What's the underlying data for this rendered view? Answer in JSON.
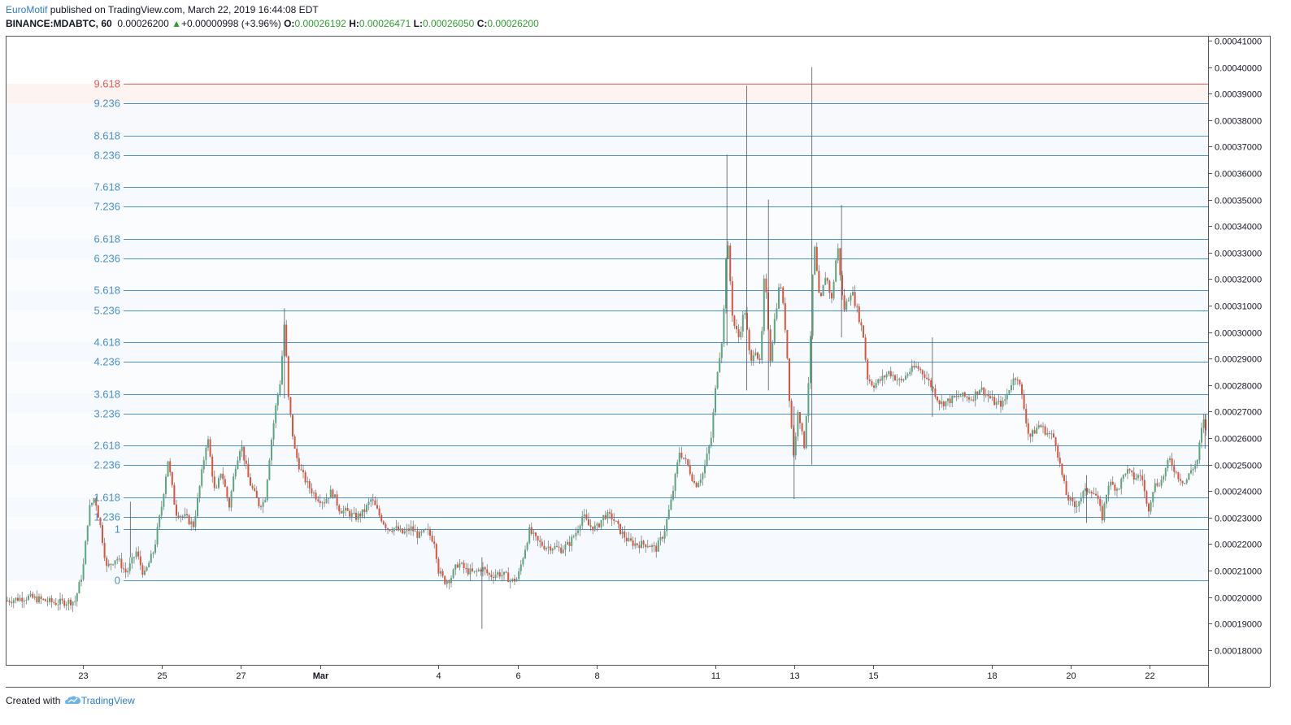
{
  "header": {
    "author": "EuroMotif",
    "published_text": "published on TradingView.com, March 22, 2019 16:44:08 EDT",
    "symbol": "BINANCE:MDABTC, 60",
    "price": "0.00026200",
    "up_arrow": "▲",
    "change": "+0.00000998 (+3.96%)",
    "o_label": "O:",
    "o_value": "0.00026192",
    "h_label": "H:",
    "h_value": "0.00026471",
    "l_label": "L:",
    "l_value": "0.00026050",
    "c_label": "C:",
    "c_value": "0.00026200"
  },
  "footer": {
    "created_with": "Created with",
    "brand": "TradingView",
    "logo_icon": "tradingview-cloud-icon"
  },
  "colors": {
    "up": "#5aa77f",
    "down": "#e0533b",
    "fib_line": "#4a90c9",
    "fib_label": "#4a90c9",
    "fib_top_line": "#e05a57",
    "axis": "#131722"
  },
  "chart_data": {
    "type": "candlestick",
    "ylim": [
      0.000175,
      0.000411
    ],
    "y_ticks": [
      "0.00018000",
      "0.00019000",
      "0.00020000",
      "0.00021000",
      "0.00022000",
      "0.00023000",
      "0.00024000",
      "0.00025000",
      "0.00026000",
      "0.00027000",
      "0.00028000",
      "0.00029000",
      "0.00030000",
      "0.00031000",
      "0.00032000",
      "0.00033000",
      "0.00034000",
      "0.00035000",
      "0.00036000",
      "0.00037000",
      "0.00038000",
      "0.00039000",
      "0.00040000",
      "0.00041000"
    ],
    "x_ticks": [
      {
        "label": "23",
        "day": 23
      },
      {
        "label": "25",
        "day": 25
      },
      {
        "label": "27",
        "day": 27
      },
      {
        "label": "Mar",
        "day": 29
      },
      {
        "label": "4",
        "day": 32
      },
      {
        "label": "6",
        "day": 34
      },
      {
        "label": "8",
        "day": 36
      },
      {
        "label": "11",
        "day": 39
      },
      {
        "label": "13",
        "day": 41
      },
      {
        "label": "15",
        "day": 43
      },
      {
        "label": "18",
        "day": 46
      },
      {
        "label": "20",
        "day": 48
      },
      {
        "label": "22",
        "day": 50
      }
    ],
    "fib_levels": [
      {
        "label": "0",
        "price": 0.0002062
      },
      {
        "label": "1",
        "price": 0.0002257
      },
      {
        "label": "1.236",
        "price": 0.0002303
      },
      {
        "label": "1.618",
        "price": 0.0002377
      },
      {
        "label": "2.236",
        "price": 0.0002498
      },
      {
        "label": "2.618",
        "price": 0.0002572
      },
      {
        "label": "3.236",
        "price": 0.0002693
      },
      {
        "label": "3.618",
        "price": 0.0002767
      },
      {
        "label": "4.236",
        "price": 0.0002888
      },
      {
        "label": "4.618",
        "price": 0.0002962
      },
      {
        "label": "5.236",
        "price": 0.0003083
      },
      {
        "label": "5.618",
        "price": 0.0003157
      },
      {
        "label": "6.236",
        "price": 0.0003278
      },
      {
        "label": "6.618",
        "price": 0.0003352
      },
      {
        "label": "7.236",
        "price": 0.0003473
      },
      {
        "label": "7.618",
        "price": 0.0003547
      },
      {
        "label": "8.236",
        "price": 0.0003668
      },
      {
        "label": "8.618",
        "price": 0.0003742
      },
      {
        "label": "9.236",
        "price": 0.0003863
      },
      {
        "label": "9.618",
        "price": 0.0003937
      }
    ],
    "price_path": [
      [
        21.0,
        0.0001985
      ],
      [
        21.6,
        0.0002
      ],
      [
        22.3,
        0.0001978
      ],
      [
        22.8,
        0.0001985
      ],
      [
        23.0,
        0.00021
      ],
      [
        23.15,
        0.000233
      ],
      [
        23.3,
        0.000238
      ],
      [
        23.45,
        0.000226
      ],
      [
        23.6,
        0.000211
      ],
      [
        23.85,
        0.000215
      ],
      [
        24.1,
        0.000209
      ],
      [
        24.35,
        0.000217
      ],
      [
        24.55,
        0.000208
      ],
      [
        24.8,
        0.000218
      ],
      [
        25.0,
        0.000235
      ],
      [
        25.15,
        0.000252
      ],
      [
        25.35,
        0.000232
      ],
      [
        25.6,
        0.00023
      ],
      [
        25.8,
        0.000227
      ],
      [
        26.0,
        0.000246
      ],
      [
        26.15,
        0.000261
      ],
      [
        26.35,
        0.000238
      ],
      [
        26.5,
        0.000248
      ],
      [
        26.7,
        0.000234
      ],
      [
        26.85,
        0.000249
      ],
      [
        27.0,
        0.000258
      ],
      [
        27.2,
        0.000244
      ],
      [
        27.45,
        0.000235
      ],
      [
        27.6,
        0.000236
      ],
      [
        27.75,
        0.000257
      ],
      [
        27.9,
        0.000274
      ],
      [
        28.0,
        0.000282
      ],
      [
        28.1,
        0.000304
      ],
      [
        28.2,
        0.000275
      ],
      [
        28.35,
        0.000256
      ],
      [
        28.5,
        0.000248
      ],
      [
        28.7,
        0.000242
      ],
      [
        28.9,
        0.000238
      ],
      [
        29.1,
        0.000236
      ],
      [
        29.3,
        0.00024
      ],
      [
        29.5,
        0.000233
      ],
      [
        29.7,
        0.000232
      ],
      [
        29.9,
        0.00023
      ],
      [
        30.1,
        0.000232
      ],
      [
        30.3,
        0.000237
      ],
      [
        30.5,
        0.000231
      ],
      [
        30.7,
        0.000226
      ],
      [
        30.9,
        0.000226
      ],
      [
        31.1,
        0.000224
      ],
      [
        31.3,
        0.000226
      ],
      [
        31.5,
        0.000223
      ],
      [
        31.7,
        0.000225
      ],
      [
        31.9,
        0.000221
      ],
      [
        32.0,
        0.00021
      ],
      [
        32.15,
        0.000206
      ],
      [
        32.3,
        0.000207
      ],
      [
        32.5,
        0.000213
      ],
      [
        32.7,
        0.00021
      ],
      [
        32.9,
        0.000209
      ],
      [
        33.1,
        0.000211
      ],
      [
        33.3,
        0.000208
      ],
      [
        33.5,
        0.000209
      ],
      [
        33.7,
        0.000208
      ],
      [
        33.85,
        0.000206
      ],
      [
        34.0,
        0.000207
      ],
      [
        34.15,
        0.000216
      ],
      [
        34.3,
        0.000225
      ],
      [
        34.5,
        0.000221
      ],
      [
        34.7,
        0.000219
      ],
      [
        34.9,
        0.000219
      ],
      [
        35.1,
        0.000218
      ],
      [
        35.3,
        0.00022
      ],
      [
        35.5,
        0.000225
      ],
      [
        35.65,
        0.000231
      ],
      [
        35.8,
        0.000227
      ],
      [
        36.0,
        0.000226
      ],
      [
        36.2,
        0.000231
      ],
      [
        36.4,
        0.00023
      ],
      [
        36.6,
        0.000225
      ],
      [
        36.8,
        0.000221
      ],
      [
        37.0,
        0.00022
      ],
      [
        37.3,
        0.00022
      ],
      [
        37.5,
        0.000218
      ],
      [
        37.7,
        0.000224
      ],
      [
        37.9,
        0.000237
      ],
      [
        38.1,
        0.000255
      ],
      [
        38.3,
        0.00025
      ],
      [
        38.5,
        0.000242
      ],
      [
        38.7,
        0.000247
      ],
      [
        38.9,
        0.00026
      ],
      [
        39.05,
        0.000285
      ],
      [
        39.2,
        0.0003
      ],
      [
        39.3,
        0.000338
      ],
      [
        39.45,
        0.000304
      ],
      [
        39.6,
        0.000298
      ],
      [
        39.75,
        0.000309
      ],
      [
        39.9,
        0.000287
      ],
      [
        40.0,
        0.000295
      ],
      [
        40.15,
        0.000287
      ],
      [
        40.25,
        0.000323
      ],
      [
        40.4,
        0.00029
      ],
      [
        40.5,
        0.000304
      ],
      [
        40.65,
        0.00032
      ],
      [
        40.8,
        0.000298
      ],
      [
        40.9,
        0.00027
      ],
      [
        41.0,
        0.000252
      ],
      [
        41.1,
        0.000272
      ],
      [
        41.25,
        0.000256
      ],
      [
        41.4,
        0.00029
      ],
      [
        41.5,
        0.000335
      ],
      [
        41.65,
        0.00031
      ],
      [
        41.8,
        0.000322
      ],
      [
        41.95,
        0.000312
      ],
      [
        42.1,
        0.000333
      ],
      [
        42.25,
        0.000308
      ],
      [
        42.45,
        0.000316
      ],
      [
        42.6,
        0.000308
      ],
      [
        42.75,
        0.000299
      ],
      [
        42.85,
        0.000283
      ],
      [
        43.0,
        0.00028
      ],
      [
        43.2,
        0.000282
      ],
      [
        43.4,
        0.000285
      ],
      [
        43.7,
        0.000281
      ],
      [
        43.9,
        0.000285
      ],
      [
        44.1,
        0.000287
      ],
      [
        44.3,
        0.000284
      ],
      [
        44.5,
        0.000279
      ],
      [
        44.7,
        0.000273
      ],
      [
        44.9,
        0.000274
      ],
      [
        45.2,
        0.000276
      ],
      [
        45.5,
        0.000275
      ],
      [
        45.7,
        0.000279
      ],
      [
        45.9,
        0.000276
      ],
      [
        46.1,
        0.000273
      ],
      [
        46.3,
        0.000273
      ],
      [
        46.5,
        0.000281
      ],
      [
        46.65,
        0.000284
      ],
      [
        46.8,
        0.000273
      ],
      [
        46.95,
        0.00026
      ],
      [
        47.2,
        0.000265
      ],
      [
        47.4,
        0.000262
      ],
      [
        47.6,
        0.00026
      ],
      [
        47.75,
        0.000248
      ],
      [
        47.9,
        0.000238
      ],
      [
        48.1,
        0.000234
      ],
      [
        48.3,
        0.000239
      ],
      [
        48.5,
        0.000241
      ],
      [
        48.65,
        0.000238
      ],
      [
        48.8,
        0.00023
      ],
      [
        48.95,
        0.000243
      ],
      [
        49.2,
        0.000241
      ],
      [
        49.4,
        0.000248
      ],
      [
        49.6,
        0.000245
      ],
      [
        49.8,
        0.000246
      ],
      [
        49.95,
        0.000232
      ],
      [
        50.1,
        0.000242
      ],
      [
        50.3,
        0.000244
      ],
      [
        50.5,
        0.000252
      ],
      [
        50.7,
        0.000246
      ],
      [
        50.9,
        0.000243
      ],
      [
        51.05,
        0.000248
      ],
      [
        51.2,
        0.000251
      ],
      [
        51.35,
        0.000267
      ],
      [
        51.45,
        0.000262
      ]
    ],
    "spikes": [
      [
        24.2,
        0.000215,
        0.000236
      ],
      [
        28.1,
        0.000275,
        0.000309
      ],
      [
        33.1,
        0.000188,
        0.000215
      ],
      [
        39.3,
        0.000295,
        0.000367
      ],
      [
        39.8,
        0.000278,
        0.000393
      ],
      [
        40.35,
        0.000278,
        0.00035
      ],
      [
        41.0,
        0.000237,
        0.000272
      ],
      [
        41.45,
        0.00025,
        0.0004
      ],
      [
        42.2,
        0.000298,
        0.000348
      ],
      [
        44.5,
        0.000268,
        0.000298
      ],
      [
        48.4,
        0.000228,
        0.000246
      ],
      [
        51.4,
        0.000256,
        0.000269
      ]
    ]
  }
}
